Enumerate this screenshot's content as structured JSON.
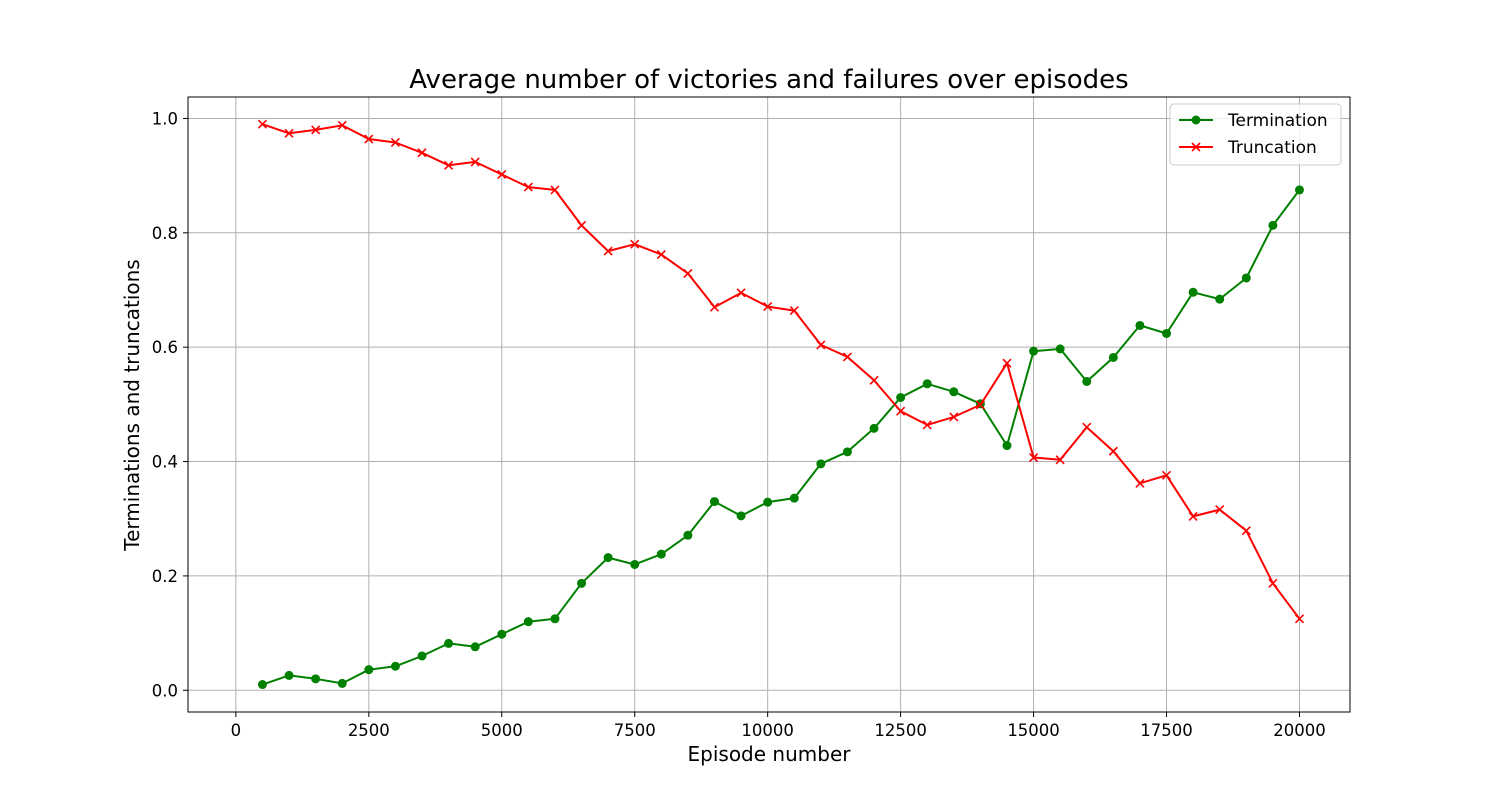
{
  "chart_data": {
    "type": "line",
    "title": "Average number of victories and failures over episodes",
    "xlabel": "Episode number",
    "ylabel": "Terminations and truncations",
    "xlim": [
      -900,
      20950
    ],
    "ylim": [
      -0.038,
      1.0375
    ],
    "x_ticks": [
      0,
      2500,
      5000,
      7500,
      10000,
      12500,
      15000,
      17500,
      20000
    ],
    "y_ticks": [
      0.0,
      0.2,
      0.4,
      0.6,
      0.8,
      1.0
    ],
    "y_tick_labels": [
      "0.0",
      "0.2",
      "0.4",
      "0.6",
      "0.8",
      "1.0"
    ],
    "grid": true,
    "legend_position": "top-right",
    "x": [
      500,
      1000,
      1500,
      2000,
      2500,
      3000,
      3500,
      4000,
      4500,
      5000,
      5500,
      6000,
      6500,
      7000,
      7500,
      8000,
      8500,
      9000,
      9500,
      10000,
      10500,
      11000,
      11500,
      12000,
      12500,
      13000,
      13500,
      14000,
      14500,
      15000,
      15500,
      16000,
      16500,
      17000,
      17500,
      18000,
      18500,
      19000,
      19500,
      20000
    ],
    "series": [
      {
        "name": "Termination",
        "color": "#008000",
        "marker": "circle",
        "values": [
          0.01,
          0.026,
          0.02,
          0.012,
          0.036,
          0.042,
          0.06,
          0.082,
          0.076,
          0.098,
          0.12,
          0.125,
          0.187,
          0.232,
          0.22,
          0.238,
          0.271,
          0.33,
          0.305,
          0.329,
          0.336,
          0.396,
          0.417,
          0.458,
          0.512,
          0.536,
          0.522,
          0.501,
          0.428,
          0.593,
          0.597,
          0.54,
          0.582,
          0.638,
          0.624,
          0.696,
          0.684,
          0.721,
          0.813,
          0.875
        ]
      },
      {
        "name": "Truncation",
        "color": "#ff0000",
        "marker": "x",
        "values": [
          0.99,
          0.974,
          0.98,
          0.988,
          0.964,
          0.958,
          0.94,
          0.918,
          0.924,
          0.902,
          0.88,
          0.875,
          0.813,
          0.768,
          0.78,
          0.762,
          0.729,
          0.67,
          0.695,
          0.671,
          0.664,
          0.604,
          0.583,
          0.542,
          0.488,
          0.464,
          0.478,
          0.499,
          0.572,
          0.407,
          0.403,
          0.46,
          0.418,
          0.362,
          0.376,
          0.304,
          0.316,
          0.279,
          0.187,
          0.125
        ]
      }
    ]
  }
}
